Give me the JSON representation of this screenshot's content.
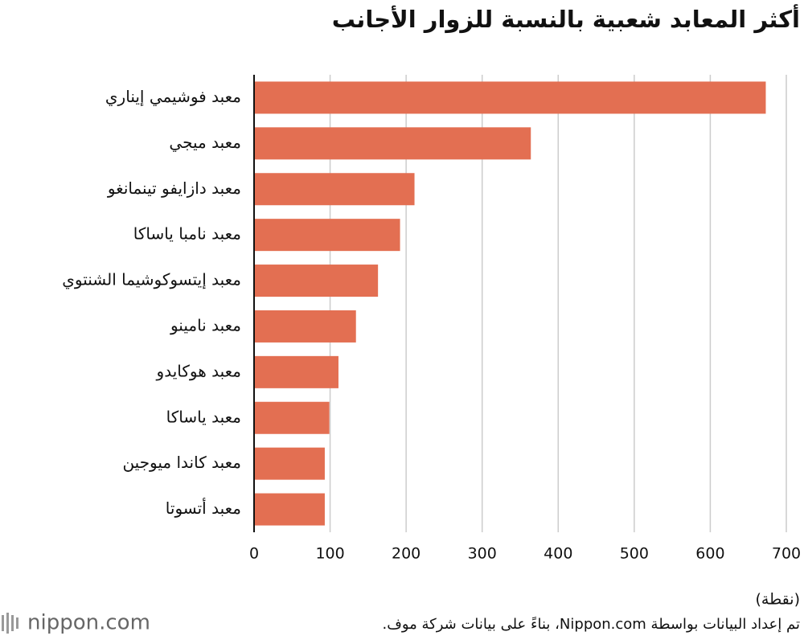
{
  "chart_data": {
    "type": "bar",
    "orientation": "horizontal",
    "title": "أكثر المعابد شعبية بالنسبة للزوار الأجانب",
    "x_label": "(نقطة)",
    "categories": [
      "معبد فوشيمي إيناري",
      "معبد ميجي",
      "معبد دازايفو تينمانغو",
      "معبد نامبا ياساكا",
      "معبد إيتسوكوشيما الشنتوي",
      "معبد نامينو",
      "معبد هوكايدو",
      "معبد ياساكا",
      "معبد كاندا ميوجين",
      "معبد أتسوتا"
    ],
    "values": [
      673,
      364,
      211,
      192,
      163,
      134,
      111,
      99,
      93,
      93
    ],
    "color": "#e36f52",
    "xlim": [
      0,
      700
    ],
    "xticks": [
      0,
      100,
      200,
      300,
      400,
      500,
      600,
      700
    ],
    "grid": true
  },
  "footer": {
    "logo": "nippon.com",
    "source": "تم إعداد البيانات بواسطة Nippon.com، بناءً على بيانات شركة موف."
  }
}
